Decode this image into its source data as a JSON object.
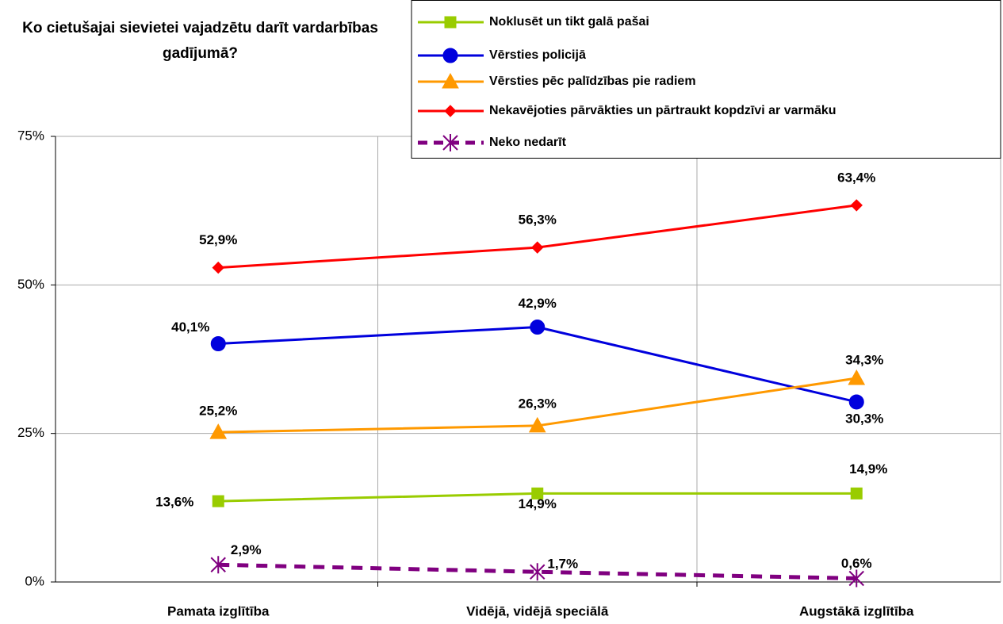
{
  "chart_data": {
    "type": "line",
    "title": "Ko cietušajai sievietei vajadzētu darīt vardarbības gadījumā?",
    "categories": [
      "Pamata izglītība",
      "Vidējā, vidējā speciālā",
      "Augstākā izglītība"
    ],
    "ylim": [
      0,
      75
    ],
    "yticks": [
      {
        "value": 0,
        "label": "0%"
      },
      {
        "value": 25,
        "label": "25%"
      },
      {
        "value": 50,
        "label": "50%"
      },
      {
        "value": 75,
        "label": "75%"
      }
    ],
    "grid": true,
    "legend": "top-right",
    "series": [
      {
        "name": "Noklusēt un tikt galā pašai",
        "color": "#99cc00",
        "marker": "square",
        "values": [
          13.6,
          14.9,
          14.9
        ],
        "value_labels": [
          "13,6%",
          "14,9%",
          "14,9%"
        ]
      },
      {
        "name": "Vērsties policijā",
        "color": "#0000dd",
        "marker": "circle",
        "values": [
          40.1,
          42.9,
          30.3
        ],
        "value_labels": [
          "40,1%",
          "42,9%",
          "30,3%"
        ]
      },
      {
        "name": "Vērsties pēc palīdzības pie radiem",
        "color": "#ff9900",
        "marker": "triangle",
        "values": [
          25.2,
          26.3,
          34.3
        ],
        "value_labels": [
          "25,2%",
          "26,3%",
          "34,3%"
        ]
      },
      {
        "name": "Nekavējoties pārvākties un pārtraukt kopdzīvi ar varmāku",
        "color": "#ff0000",
        "marker": "diamond",
        "values": [
          52.9,
          56.3,
          63.4
        ],
        "value_labels": [
          "52,9%",
          "56,3%",
          "63,4%"
        ]
      },
      {
        "name": "Neko nedarīt",
        "color": "#800080",
        "marker": "star",
        "dash": true,
        "values": [
          2.9,
          1.7,
          0.6
        ],
        "value_labels": [
          "2,9%",
          "1,7%",
          "0,6%"
        ]
      }
    ]
  }
}
